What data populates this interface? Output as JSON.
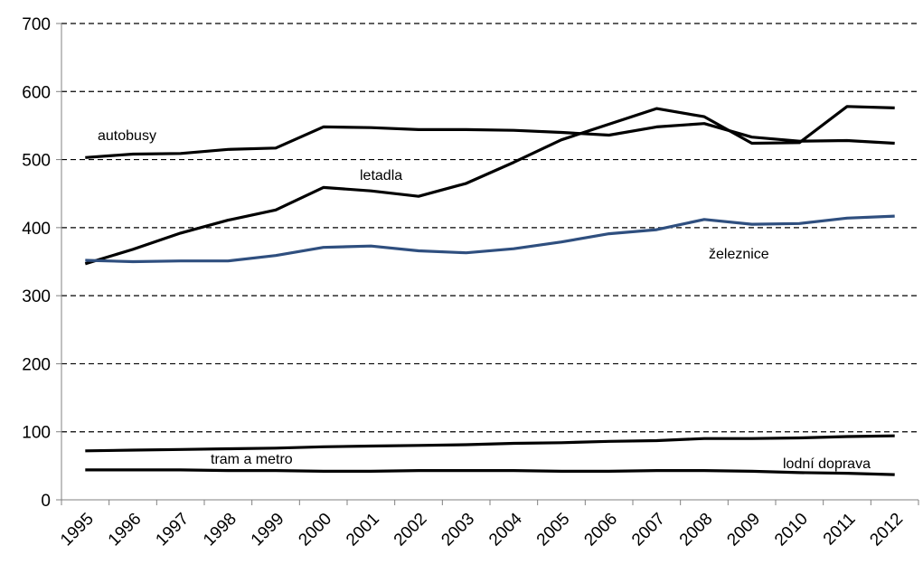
{
  "chart_data": {
    "type": "line",
    "title": "",
    "xlabel": "",
    "ylabel": "",
    "x": [
      "1995",
      "1996",
      "1997",
      "1998",
      "1999",
      "2000",
      "2001",
      "2002",
      "2003",
      "2004",
      "2005",
      "2006",
      "2007",
      "2008",
      "2009",
      "2010",
      "2011",
      "2012"
    ],
    "ylim": [
      0,
      700
    ],
    "yticks": [
      0,
      100,
      200,
      300,
      400,
      500,
      600,
      700
    ],
    "grid": true,
    "legend": "none",
    "series": [
      {
        "name": "autobusy",
        "color": "#000000",
        "values": [
          503,
          508,
          509,
          515,
          517,
          548,
          547,
          544,
          544,
          543,
          540,
          536,
          548,
          553,
          533,
          527,
          528,
          524
        ]
      },
      {
        "name": "letadla",
        "color": "#000000",
        "values": [
          347,
          368,
          392,
          411,
          426,
          459,
          454,
          446,
          465,
          496,
          529,
          552,
          575,
          563,
          524,
          525,
          578,
          576
        ]
      },
      {
        "name": "železnice",
        "color": "#2f4f7f",
        "values": [
          352,
          350,
          351,
          351,
          359,
          371,
          373,
          366,
          363,
          369,
          379,
          391,
          397,
          412,
          405,
          406,
          414,
          417
        ]
      },
      {
        "name": "tram a metro",
        "color": "#000000",
        "values": [
          72,
          73,
          74,
          75,
          76,
          78,
          79,
          80,
          81,
          83,
          84,
          86,
          87,
          90,
          90,
          91,
          93,
          94
        ]
      },
      {
        "name": "lodní doprava",
        "color": "#000000",
        "values": [
          44,
          44,
          44,
          43,
          43,
          42,
          42,
          43,
          43,
          43,
          42,
          42,
          43,
          43,
          42,
          40,
          39,
          37
        ]
      }
    ]
  }
}
